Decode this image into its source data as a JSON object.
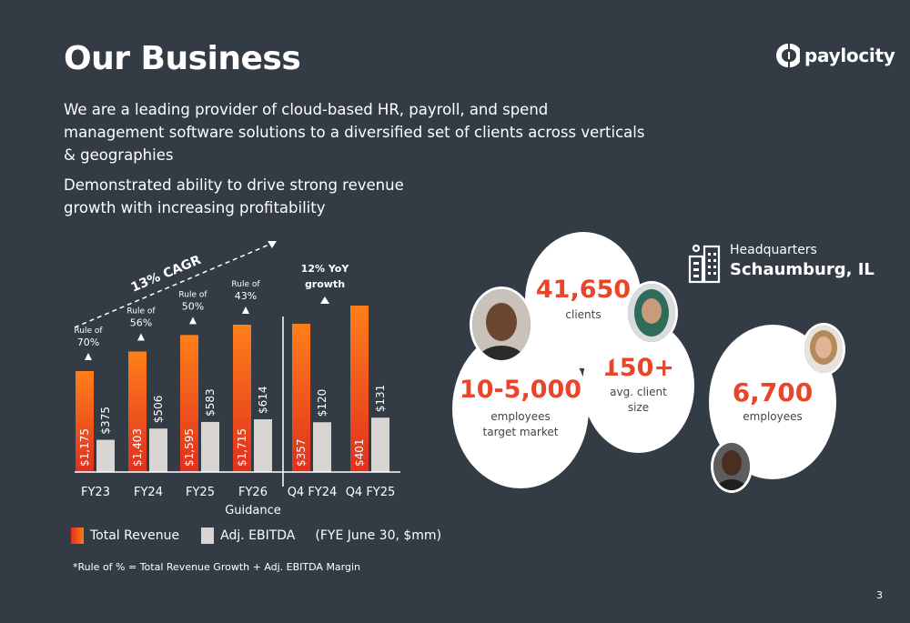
{
  "title": "Our Business",
  "logo": {
    "text": "paylocity"
  },
  "subtitle": "We are a leading provider of cloud-based HR, payroll, and spend management software solutions to a diversified set of clients across verticals & geographies",
  "tagline": "Demonstrated ability to drive strong revenue growth with increasing profitability",
  "chart_data": {
    "type": "bar",
    "categories": [
      "FY23",
      "FY24",
      "FY25",
      "FY26 Guidance",
      "Q4 FY24",
      "Q4 FY25"
    ],
    "series": [
      {
        "name": "Total Revenue",
        "values": [
          1175,
          1403,
          1595,
          1715,
          357,
          401
        ],
        "labels": [
          "$1,175",
          "$1,403",
          "$1,595",
          "$1,715",
          "$357",
          "$401"
        ],
        "color": "#f0461f"
      },
      {
        "name": "Adj. EBITDA",
        "values": [
          375,
          506,
          583,
          614,
          120,
          131
        ],
        "labels": [
          "$375",
          "$506",
          "$583",
          "$614",
          "$120",
          "$131"
        ],
        "color": "#d9d5d2"
      }
    ],
    "rule_of": [
      {
        "label": "Rule of",
        "value": "70%"
      },
      {
        "label": "Rule of",
        "value": "56%"
      },
      {
        "label": "Rule of",
        "value": "50%"
      },
      {
        "label": "Rule of",
        "value": "43%"
      }
    ],
    "cagr_label": "13% CAGR",
    "yoy_label": [
      "12% YoY",
      "growth"
    ],
    "legend": [
      "Total Revenue",
      "Adj. EBITDA"
    ],
    "units_note": "(FYE June 30, $mm)"
  },
  "footnote": "*Rule of % = Total Revenue Growth + Adj. EBITDA Margin",
  "stats": {
    "clients": {
      "value": "41,650",
      "label": "clients"
    },
    "employees_target": {
      "value": "10-5,000",
      "label1": "employees",
      "label2": "target market"
    },
    "client_size": {
      "value": "150+",
      "label1": "avg. client",
      "label2": "size"
    },
    "employees": {
      "value": "6,700",
      "label": "employees"
    }
  },
  "hq": {
    "label": "Headquarters",
    "city": "Schaumburg, IL"
  },
  "page_number": "3",
  "colors": {
    "background": "#333b44",
    "accent": "#e8452a",
    "ebitda": "#d9d5d2"
  }
}
